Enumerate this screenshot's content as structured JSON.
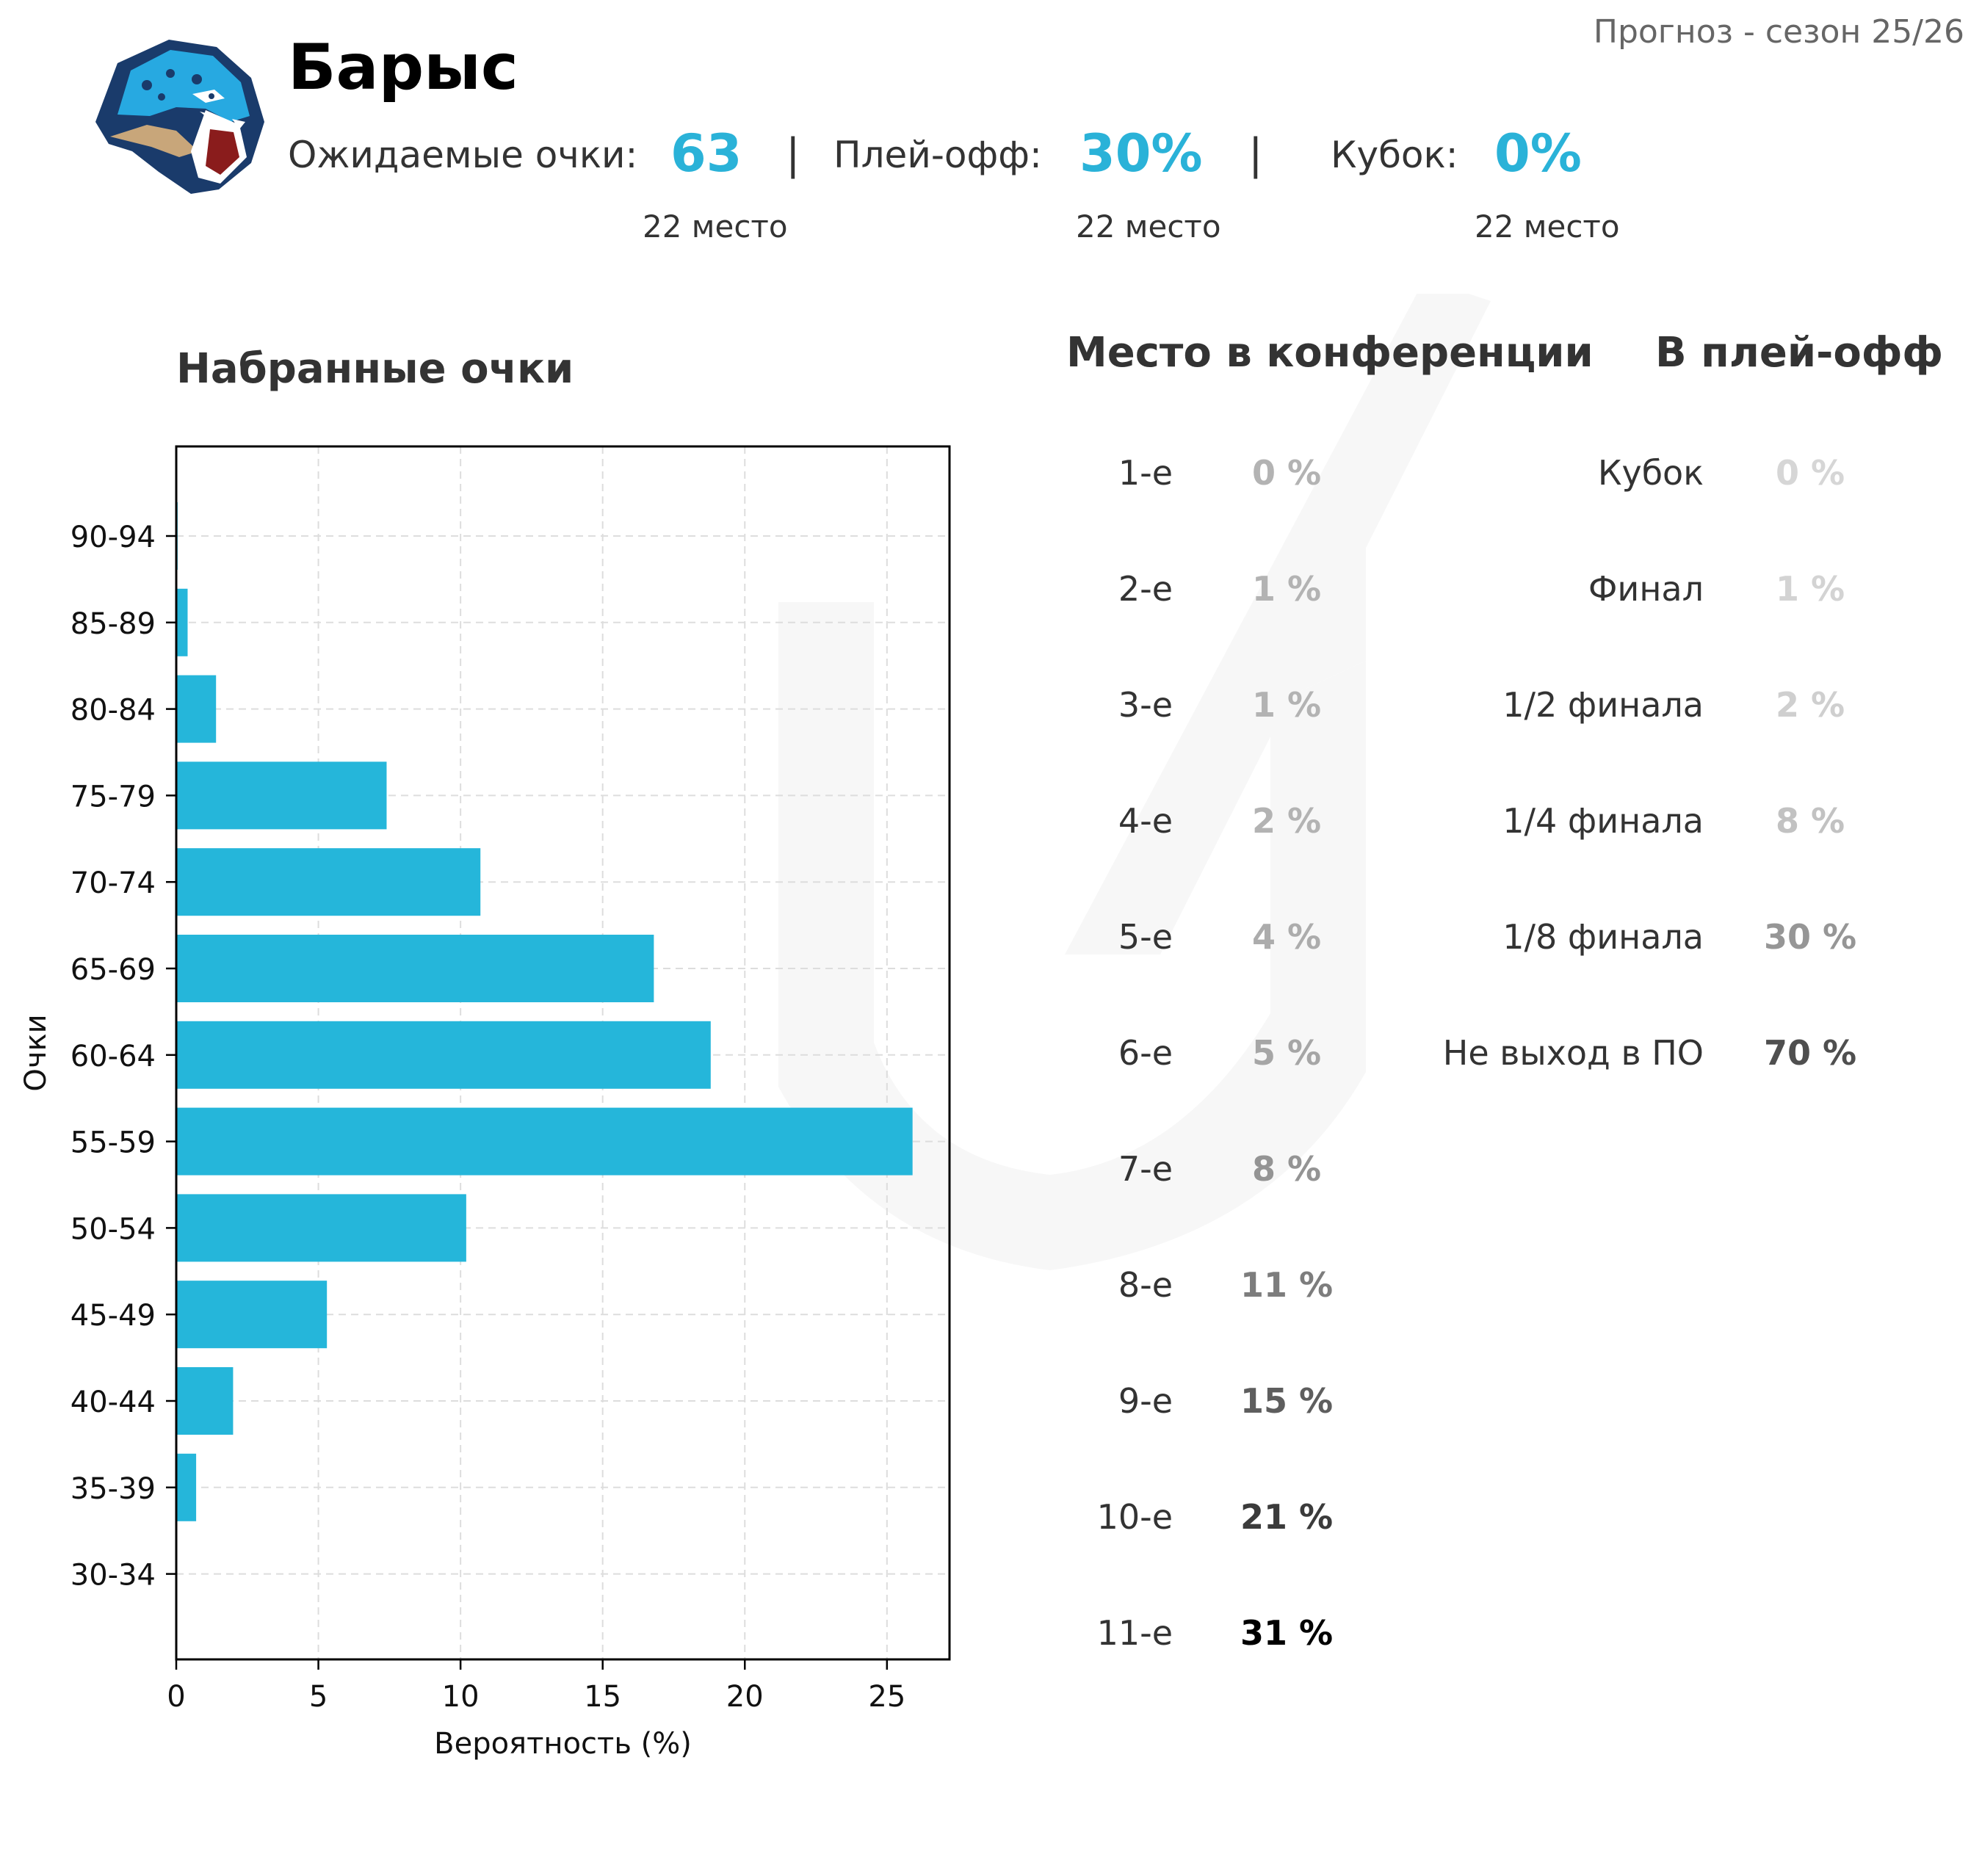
{
  "header": {
    "team": "Барыс",
    "season": "Прогноз - сезон 25/26",
    "stats": [
      {
        "label": "Ожидаемые очки:",
        "value": "63",
        "rank": "22 место"
      },
      {
        "label": "Плей-офф:",
        "value": "30%",
        "rank": "22 место"
      },
      {
        "label": "Кубок:",
        "value": "0%",
        "rank": "22 место"
      }
    ],
    "separator": "|",
    "accent_color": "#2ab2d8"
  },
  "chart_data": {
    "type": "bar",
    "orientation": "horizontal",
    "title": "Набранные очки",
    "xlabel": "Вероятность (%)",
    "ylabel": "Очки",
    "xlim": [
      0,
      27.2
    ],
    "xticks": [
      0,
      5,
      10,
      15,
      20,
      25
    ],
    "grid": true,
    "bar_color": "#25b6da",
    "categories": [
      "90-94",
      "85-89",
      "80-84",
      "75-79",
      "70-74",
      "65-69",
      "60-64",
      "55-59",
      "50-54",
      "45-49",
      "40-44",
      "35-39",
      "30-34"
    ],
    "values": [
      0.05,
      0.4,
      1.4,
      7.4,
      10.7,
      16.8,
      18.8,
      25.9,
      10.2,
      5.3,
      2.0,
      0.7,
      0
    ]
  },
  "conference": {
    "title": "Место в конференции",
    "rows": [
      {
        "place": "1-е",
        "value": "0 %",
        "color": "#b3b3b3"
      },
      {
        "place": "2-е",
        "value": "1 %",
        "color": "#b3b3b3"
      },
      {
        "place": "3-е",
        "value": "1 %",
        "color": "#b3b3b3"
      },
      {
        "place": "4-е",
        "value": "2 %",
        "color": "#b3b3b3"
      },
      {
        "place": "5-е",
        "value": "4 %",
        "color": "#acacac"
      },
      {
        "place": "6-е",
        "value": "5 %",
        "color": "#a6a6a6"
      },
      {
        "place": "7-е",
        "value": "8 %",
        "color": "#949494"
      },
      {
        "place": "8-е",
        "value": "11 %",
        "color": "#7d7d7d"
      },
      {
        "place": "9-е",
        "value": "15 %",
        "color": "#5e5e5e"
      },
      {
        "place": "10-е",
        "value": "21 %",
        "color": "#3b3b3b"
      },
      {
        "place": "11-е",
        "value": "31 %",
        "color": "#000000"
      }
    ]
  },
  "playoffs": {
    "title": "В плей-офф",
    "rows": [
      {
        "stage": "Кубок",
        "value": "0 %",
        "color": "#d6d6d6"
      },
      {
        "stage": "Финал",
        "value": "1 %",
        "color": "#d3d3d3"
      },
      {
        "stage": "1/2 финала",
        "value": "2 %",
        "color": "#cfcfcf"
      },
      {
        "stage": "1/4 финала",
        "value": "8 %",
        "color": "#c2c2c2"
      },
      {
        "stage": "1/8 финала",
        "value": "30 %",
        "color": "#969696"
      },
      {
        "stage": "Не выход в ПО",
        "value": "70 %",
        "color": "#4f4f4f"
      }
    ]
  }
}
